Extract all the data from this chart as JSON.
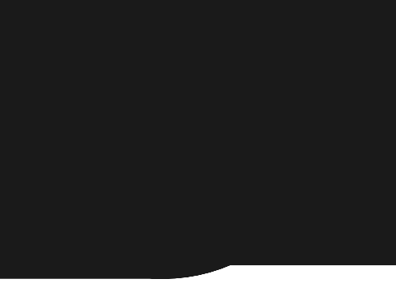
{
  "bg_color": "#ffffff",
  "lc": "#1a1a1a",
  "fig_width": 4.89,
  "fig_height": 3.6,
  "dpi": 100
}
